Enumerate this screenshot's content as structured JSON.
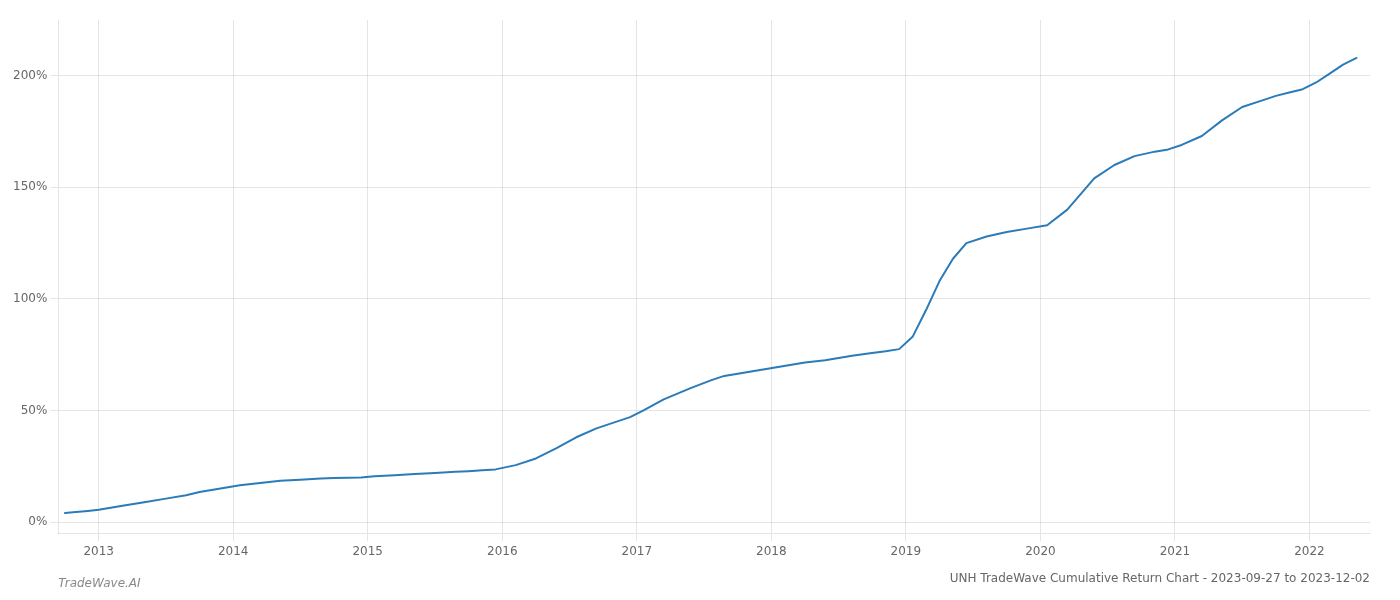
{
  "chart_data": {
    "type": "line",
    "title": "UNH TradeWave Cumulative Return Chart - 2023-09-27 to 2023-12-02",
    "annotations": [
      "TradeWave.AI"
    ],
    "color": "#2b7bb9",
    "grid": true,
    "xlim": [
      2012.7,
      2022.45
    ],
    "ylim": [
      -0.05,
      2.25
    ],
    "xticks": [
      2013,
      2014,
      2015,
      2016,
      2017,
      2018,
      2019,
      2020,
      2021,
      2022
    ],
    "yticks": [
      {
        "value": 0.0,
        "label": "0%"
      },
      {
        "value": 0.5,
        "label": "50%"
      },
      {
        "value": 1.0,
        "label": "100%"
      },
      {
        "value": 1.5,
        "label": "150%"
      },
      {
        "value": 2.0,
        "label": "200%"
      }
    ],
    "x": [
      2012.75,
      2012.83,
      2012.92,
      2013.0,
      2013.1,
      2013.2,
      2013.35,
      2013.5,
      2013.65,
      2013.75,
      2013.85,
      2013.95,
      2014.05,
      2014.2,
      2014.35,
      2014.5,
      2014.65,
      2014.75,
      2014.85,
      2014.95,
      2015.05,
      2015.2,
      2015.35,
      2015.5,
      2015.65,
      2015.75,
      2015.85,
      2015.95,
      2016.1,
      2016.25,
      2016.4,
      2016.55,
      2016.7,
      2016.85,
      2016.95,
      2017.05,
      2017.2,
      2017.4,
      2017.55,
      2017.65,
      2017.75,
      2017.85,
      2017.95,
      2018.05,
      2018.15,
      2018.25,
      2018.4,
      2018.5,
      2018.6,
      2018.72,
      2018.85,
      2018.95,
      2019.05,
      2019.15,
      2019.25,
      2019.35,
      2019.45,
      2019.6,
      2019.75,
      2019.9,
      2020.05,
      2020.2,
      2020.4,
      2020.55,
      2020.7,
      2020.85,
      2020.95,
      2021.05,
      2021.2,
      2021.35,
      2021.5,
      2021.65,
      2021.75,
      2021.85,
      2021.95,
      2022.05,
      2022.15,
      2022.25,
      2022.35
    ],
    "values": [
      0.04,
      0.045,
      0.05,
      0.055,
      0.065,
      0.075,
      0.09,
      0.105,
      0.12,
      0.135,
      0.145,
      0.155,
      0.165,
      0.175,
      0.185,
      0.19,
      0.195,
      0.197,
      0.199,
      0.2,
      0.205,
      0.21,
      0.215,
      0.22,
      0.225,
      0.228,
      0.232,
      0.236,
      0.255,
      0.285,
      0.33,
      0.38,
      0.42,
      0.45,
      0.47,
      0.5,
      0.55,
      0.6,
      0.635,
      0.655,
      0.665,
      0.675,
      0.685,
      0.695,
      0.705,
      0.715,
      0.725,
      0.735,
      0.745,
      0.755,
      0.765,
      0.775,
      0.83,
      0.95,
      1.08,
      1.18,
      1.25,
      1.28,
      1.3,
      1.315,
      1.33,
      1.4,
      1.54,
      1.6,
      1.64,
      1.66,
      1.67,
      1.69,
      1.73,
      1.8,
      1.86,
      1.89,
      1.91,
      1.925,
      1.94,
      1.97,
      2.01,
      2.05,
      2.08
    ]
  }
}
